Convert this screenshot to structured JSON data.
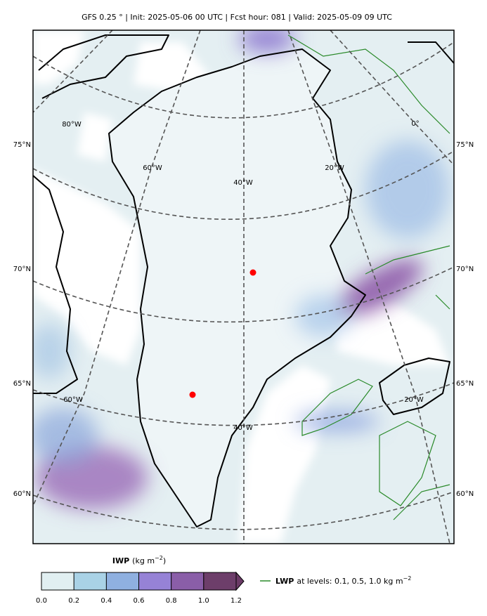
{
  "header": {
    "title": "GFS 0.25 °  |  Init: 2025-05-06 00 UTC  |  Fcst hour: 081  |  Valid: 2025-05-09 09 UTC"
  },
  "map": {
    "lat_labels_left": [
      "75°N",
      "70°N",
      "65°N",
      "60°N"
    ],
    "lat_labels_right": [
      "75°N",
      "70°N",
      "65°N",
      "60°N"
    ],
    "lon_labels": [
      "80°W",
      "0°",
      "60°W",
      "40°W",
      "20°W",
      "60°W",
      "40°W",
      "20°W"
    ]
  },
  "colorbar": {
    "label": "IWP",
    "units": "(kg m",
    "units_exp": "−2",
    "units_close": ")",
    "ticks": [
      "0.0",
      "0.2",
      "0.4",
      "0.6",
      "0.8",
      "1.0",
      "1.2"
    ]
  },
  "legend": {
    "label": "LWP",
    "text": "at levels: 0.1, 0.5, 1.0  kg m",
    "exp": "−2"
  }
}
